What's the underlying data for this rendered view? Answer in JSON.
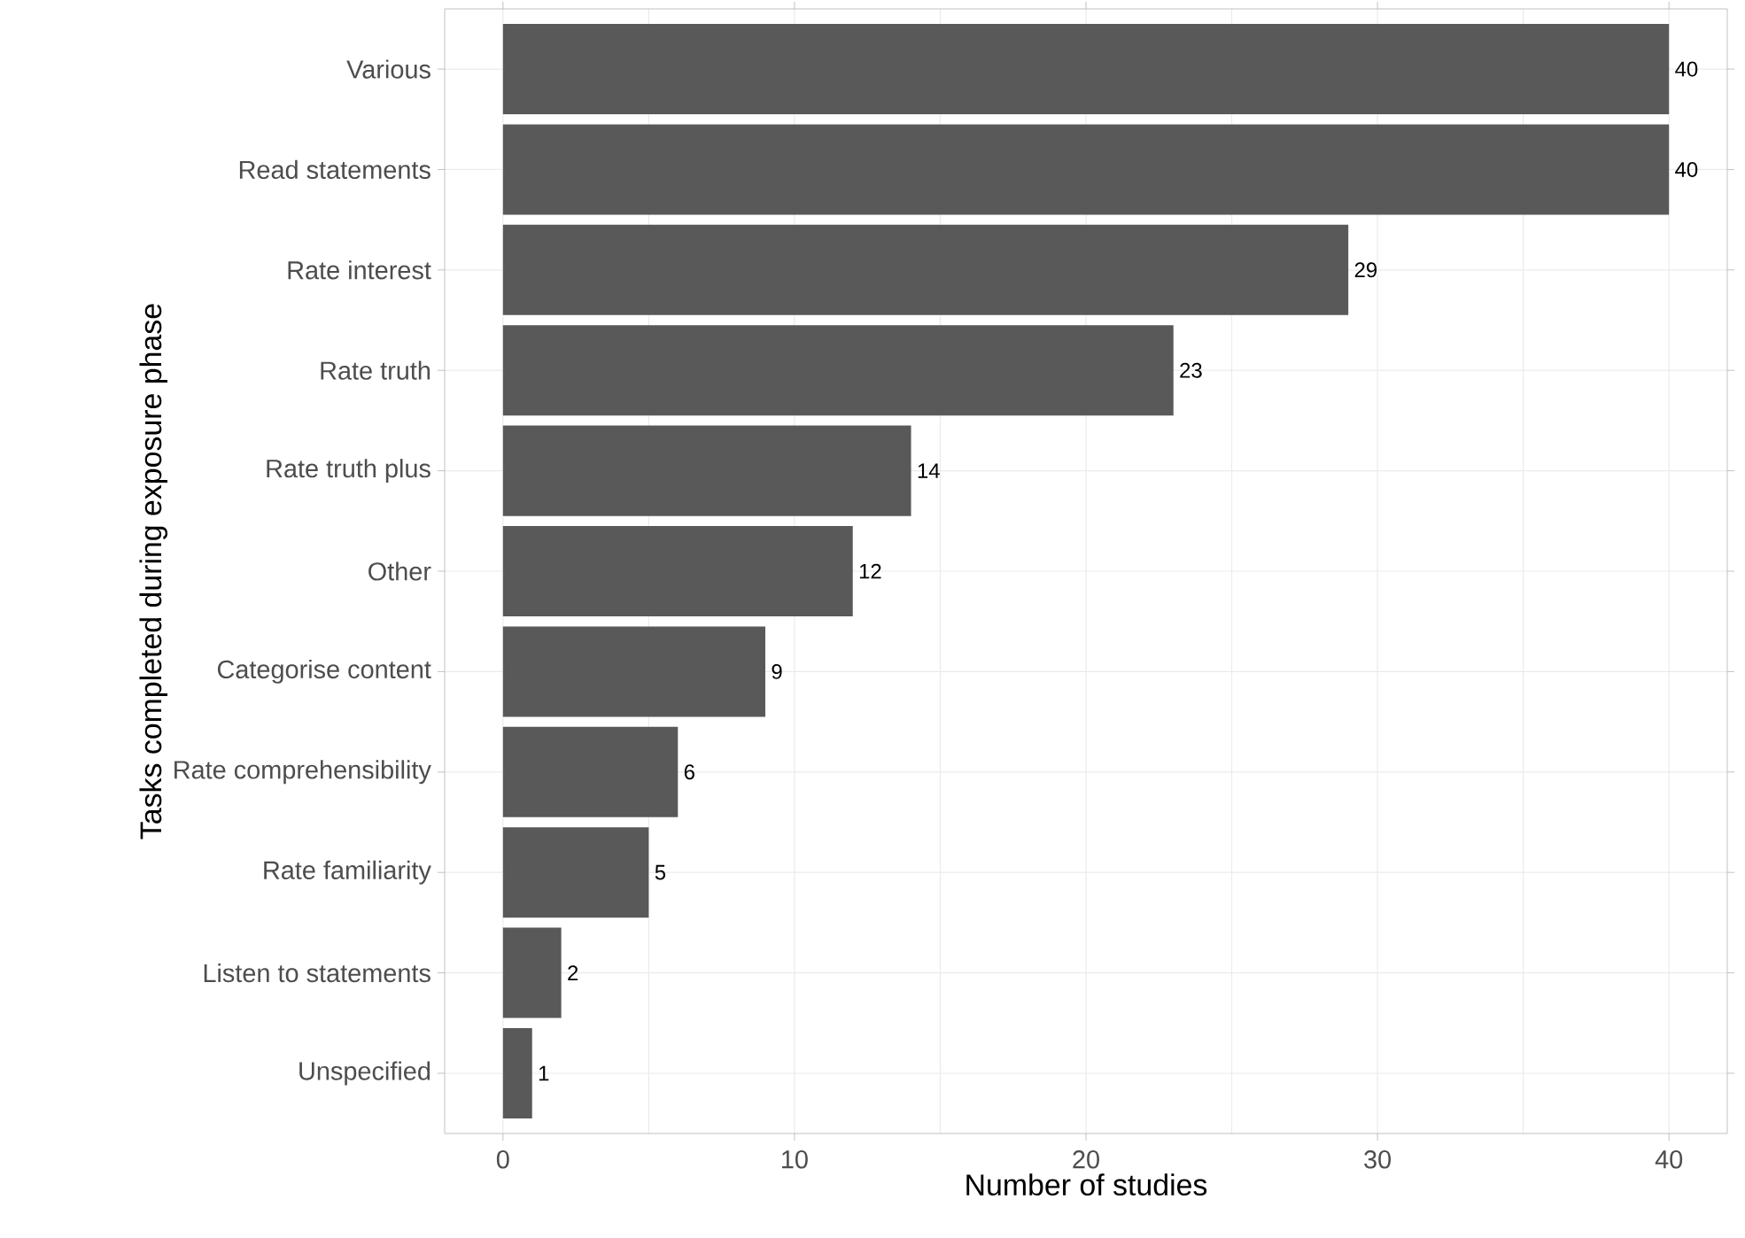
{
  "chart_data": {
    "type": "bar",
    "orientation": "horizontal",
    "xlabel": "Number of studies",
    "ylabel": "Tasks completed during exposure phase",
    "categories": [
      "Various",
      "Read statements",
      "Rate interest",
      "Rate truth",
      "Rate truth plus",
      "Other",
      "Categorise content",
      "Rate comprehensibility",
      "Rate familiarity",
      "Listen to statements",
      "Unspecified"
    ],
    "values": [
      40,
      40,
      29,
      23,
      14,
      12,
      9,
      6,
      5,
      2,
      1
    ],
    "color": "#595959",
    "xlim": [
      -2,
      42
    ],
    "xticks": [
      0,
      10,
      20,
      30,
      40
    ],
    "grid": true,
    "data_labels": true
  }
}
